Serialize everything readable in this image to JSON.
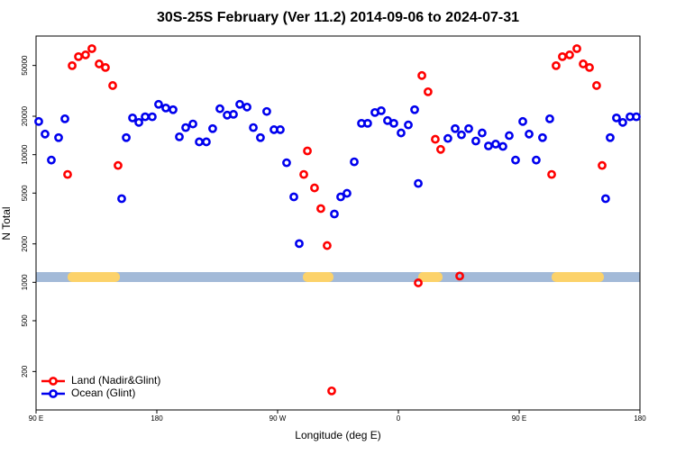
{
  "chart_data": {
    "type": "scatter",
    "title": "30S-25S February (Ver 11.2)   2014-09-06 to 2024-07-31",
    "x_label": "Longitude (deg E)",
    "y_label": "N Total",
    "log_y": true,
    "legend": "lower left",
    "xlim": [
      90,
      540
    ],
    "xticks": [
      {
        "value": 90,
        "label": "90 E"
      },
      180,
      {
        "value": 270,
        "label": "90 W"
      },
      {
        "value": 360,
        "label": "0"
      },
      {
        "value": 450,
        "label": "90 E"
      },
      {
        "value": 540,
        "label": "180"
      }
    ],
    "ylim": [
      100,
      85000
    ],
    "yticks": [
      200,
      500,
      1000,
      2000,
      5000,
      10000,
      20000,
      50000
    ],
    "series": [
      {
        "name": "Land (Nadir&Glint)",
        "color": "#ff0000",
        "x": [
          113.5,
          116.9,
          121.6,
          126.9,
          131.6,
          137.0,
          141.7,
          147.1,
          151.1,
          289.5,
          292.2,
          297.5,
          302.2,
          306.9,
          310.3,
          374.8,
          377.5,
          382.1,
          387.5,
          391.5,
          405.7,
          474.2,
          477.5,
          482.2,
          487.6,
          493.0,
          497.7,
          502.4,
          507.7,
          511.8
        ],
        "values": [
          7000,
          49800,
          58600,
          60500,
          67700,
          51400,
          48200,
          34800,
          8230,
          7000,
          10700,
          5490,
          3780,
          1940,
          141,
          990,
          41700,
          31100,
          13200,
          11000,
          1120,
          7000,
          49800,
          58600,
          60500,
          67700,
          51400,
          48200,
          34800,
          8230
        ]
      },
      {
        "name": "Ocean (Glint)",
        "color": "#0000ee",
        "x": [
          92.0,
          96.7,
          101.4,
          106.8,
          111.5,
          153.8,
          157.2,
          161.9,
          166.6,
          171.3,
          176.6,
          181.3,
          186.7,
          192.1,
          196.8,
          201.5,
          206.9,
          211.6,
          216.9,
          221.6,
          227.0,
          232.4,
          237.1,
          241.8,
          247.2,
          251.9,
          257.2,
          261.9,
          267.3,
          272.0,
          276.7,
          282.1,
          286.1,
          312.3,
          317.0,
          321.7,
          327.1,
          332.5,
          337.1,
          342.5,
          347.2,
          351.9,
          356.6,
          362.0,
          367.4,
          372.1,
          374.8,
          396.9,
          402.3,
          407.0,
          412.4,
          417.7,
          422.4,
          427.1,
          432.5,
          437.9,
          442.6,
          447.3,
          452.7,
          457.4,
          462.7,
          467.4,
          472.8,
          514.4,
          517.8,
          522.5,
          527.2,
          532.6,
          537.3
        ],
        "values": [
          18200,
          14500,
          9070,
          13600,
          19100,
          4520,
          13600,
          19400,
          17900,
          19800,
          19800,
          24800,
          23200,
          22500,
          13800,
          16300,
          17400,
          12600,
          12600,
          16000,
          22900,
          20400,
          20700,
          24800,
          23600,
          16300,
          13600,
          21800,
          15700,
          15700,
          8640,
          4670,
          2010,
          3430,
          4670,
          4980,
          8790,
          17600,
          17600,
          21400,
          22100,
          18500,
          17600,
          14800,
          17100,
          22500,
          5950,
          13400,
          16000,
          14300,
          16000,
          12800,
          14800,
          11700,
          12100,
          11600,
          14100,
          9070,
          18200,
          14500,
          9070,
          13600,
          19100,
          4520,
          13600,
          19400,
          17900,
          19800,
          19800
        ]
      }
    ]
  }
}
